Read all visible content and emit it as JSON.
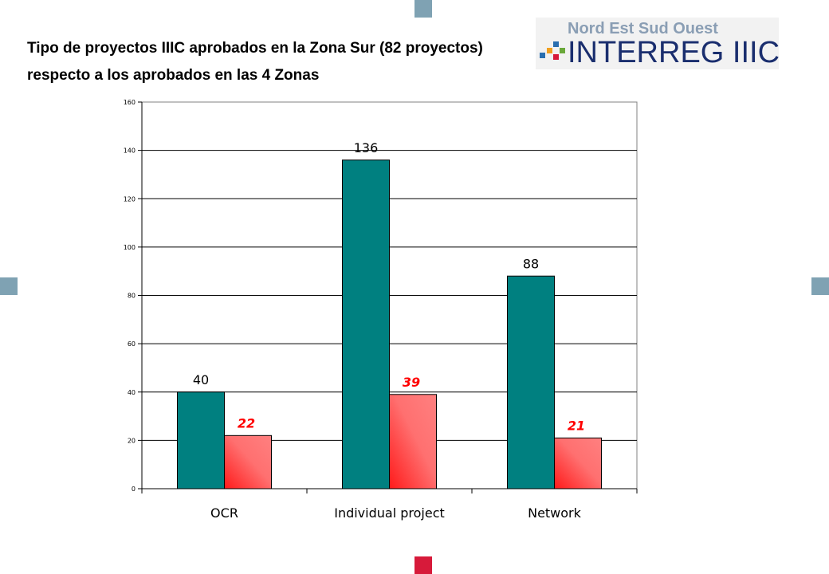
{
  "slide": {
    "title": "Tipo de proyectos IIIC aprobados en la Zona Sur (82 proyectos) respecto a los aprobados en las 4 Zonas",
    "logo_top": "Nord Est Sud Ouest",
    "logo_main": "INTERREG IIIC"
  },
  "colors": {
    "series_all": "#008080",
    "series_south": "#ff6b6b",
    "south_label": "#ff0000",
    "square_blue": "#7fa2b3",
    "square_red": "#d71a3a"
  },
  "chart_data": {
    "type": "bar",
    "categories": [
      "OCR",
      "Individual project",
      "Network"
    ],
    "series": [
      {
        "values": [
          40,
          136,
          88
        ],
        "data_labels": [
          "40",
          "136",
          "88"
        ]
      },
      {
        "values": [
          22,
          39,
          21
        ],
        "data_labels": [
          "22",
          "39",
          "21"
        ]
      }
    ],
    "ylim": [
      0,
      160
    ],
    "yticks": [
      "0",
      "20",
      "40",
      "60",
      "80",
      "100",
      "120",
      "140",
      "160"
    ],
    "grid": true,
    "legend": "none"
  }
}
